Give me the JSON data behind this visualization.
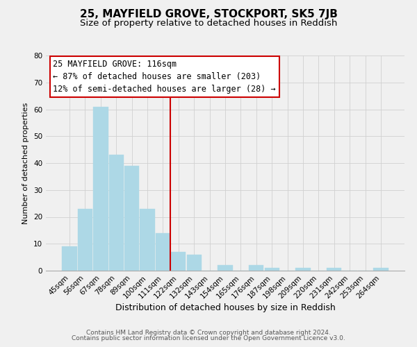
{
  "title": "25, MAYFIELD GROVE, STOCKPORT, SK5 7JB",
  "subtitle": "Size of property relative to detached houses in Reddish",
  "xlabel": "Distribution of detached houses by size in Reddish",
  "ylabel": "Number of detached properties",
  "categories": [
    "45sqm",
    "56sqm",
    "67sqm",
    "78sqm",
    "89sqm",
    "100sqm",
    "111sqm",
    "122sqm",
    "132sqm",
    "143sqm",
    "154sqm",
    "165sqm",
    "176sqm",
    "187sqm",
    "198sqm",
    "209sqm",
    "220sqm",
    "231sqm",
    "242sqm",
    "253sqm",
    "264sqm"
  ],
  "values": [
    9,
    23,
    61,
    43,
    39,
    23,
    14,
    7,
    6,
    0,
    2,
    0,
    2,
    1,
    0,
    1,
    0,
    1,
    0,
    0,
    1
  ],
  "bar_color": "#add8e6",
  "bar_edge_color": "#add8e6",
  "marker_line_color": "#cc0000",
  "ylim": [
    0,
    80
  ],
  "yticks": [
    0,
    10,
    20,
    30,
    40,
    50,
    60,
    70,
    80
  ],
  "annotation_title": "25 MAYFIELD GROVE: 116sqm",
  "annotation_line1": "← 87% of detached houses are smaller (203)",
  "annotation_line2": "12% of semi-detached houses are larger (28) →",
  "annotation_box_color": "#ffffff",
  "annotation_box_edge": "#cc0000",
  "grid_color": "#d0d0d0",
  "background_color": "#f0f0f0",
  "footer1": "Contains HM Land Registry data © Crown copyright and database right 2024.",
  "footer2": "Contains public sector information licensed under the Open Government Licence v3.0.",
  "title_fontsize": 11,
  "subtitle_fontsize": 9.5,
  "xlabel_fontsize": 9,
  "ylabel_fontsize": 8,
  "tick_fontsize": 7.5,
  "annotation_fontsize": 8.5,
  "footer_fontsize": 6.5
}
